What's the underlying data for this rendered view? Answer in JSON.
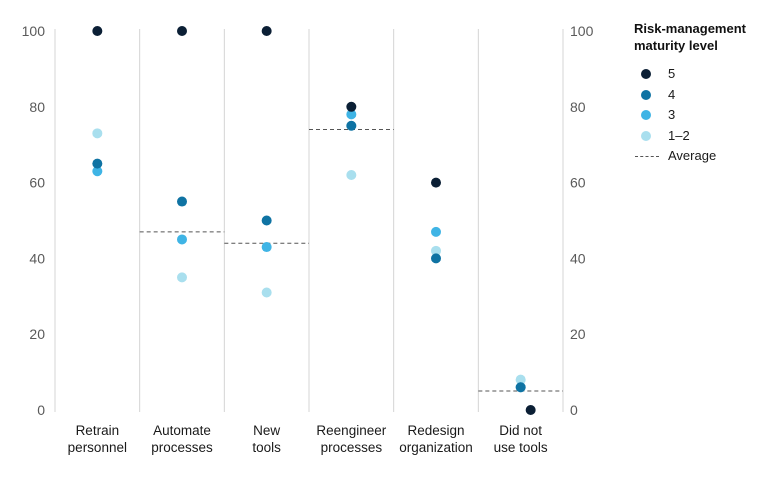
{
  "chart_data": {
    "type": "scatter",
    "categories": [
      [
        "Retrain",
        "personnel"
      ],
      [
        "Automate",
        "processes"
      ],
      [
        "New",
        "tools"
      ],
      [
        "Reengineer",
        "processes"
      ],
      [
        "Redesign",
        "organization"
      ],
      [
        "Did not",
        "use tools"
      ]
    ],
    "ylim": [
      0,
      100
    ],
    "yticks": [
      0,
      20,
      40,
      60,
      80,
      100
    ],
    "right_axis": true,
    "grid": false,
    "legend_position": "right",
    "legend_title": "Risk-management maturity level",
    "series": [
      {
        "name": "5",
        "color": "#0b1f35",
        "values": [
          100,
          100,
          100,
          80,
          60,
          0
        ]
      },
      {
        "name": "4",
        "color": "#0f73a3",
        "values": [
          65,
          55,
          50,
          75,
          40,
          6
        ]
      },
      {
        "name": "3",
        "color": "#3fb4e5",
        "values": [
          63,
          45,
          43,
          78,
          47,
          6
        ]
      },
      {
        "name": "1–2",
        "color": "#a9dfee",
        "values": [
          73,
          35,
          31,
          62,
          42,
          8
        ]
      }
    ],
    "average": {
      "name": "Average",
      "values": [
        null,
        47,
        44,
        74,
        null,
        5
      ]
    }
  }
}
